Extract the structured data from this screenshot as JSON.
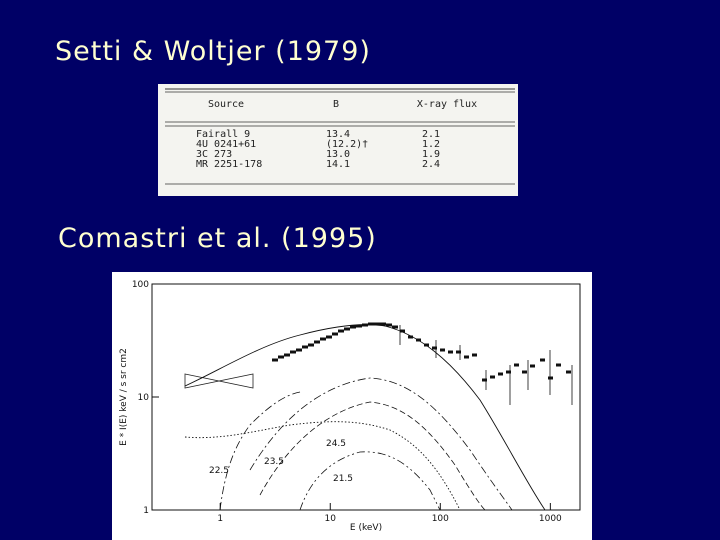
{
  "title": "Setti & Woltjer (1979)",
  "table": {
    "headers": [
      "Source",
      "B",
      "X-ray flux"
    ],
    "rows": [
      [
        "Fairall 9",
        "13.4",
        "2.1"
      ],
      [
        "4U 0241+61",
        "(12.2)†",
        "1.2"
      ],
      [
        "3C 273",
        "13.0",
        "1.9"
      ],
      [
        "MR 2251-178",
        "14.1",
        "2.4"
      ]
    ]
  },
  "subtitle": "Comastri et al. (1995)",
  "figure": {
    "y_axis_label": "E * I(E)  keV / s sr cm2",
    "x_axis_label": "E (keV)",
    "log_x": true,
    "log_y": true,
    "xlim": [
      0.24,
      1860
    ],
    "ylim": [
      1,
      100
    ],
    "xticks": [
      1,
      10,
      100,
      1000
    ],
    "yticks": [
      1,
      10,
      100
    ],
    "annotations": [
      "22.5",
      "23.5",
      "24.5",
      "21.5"
    ]
  }
}
